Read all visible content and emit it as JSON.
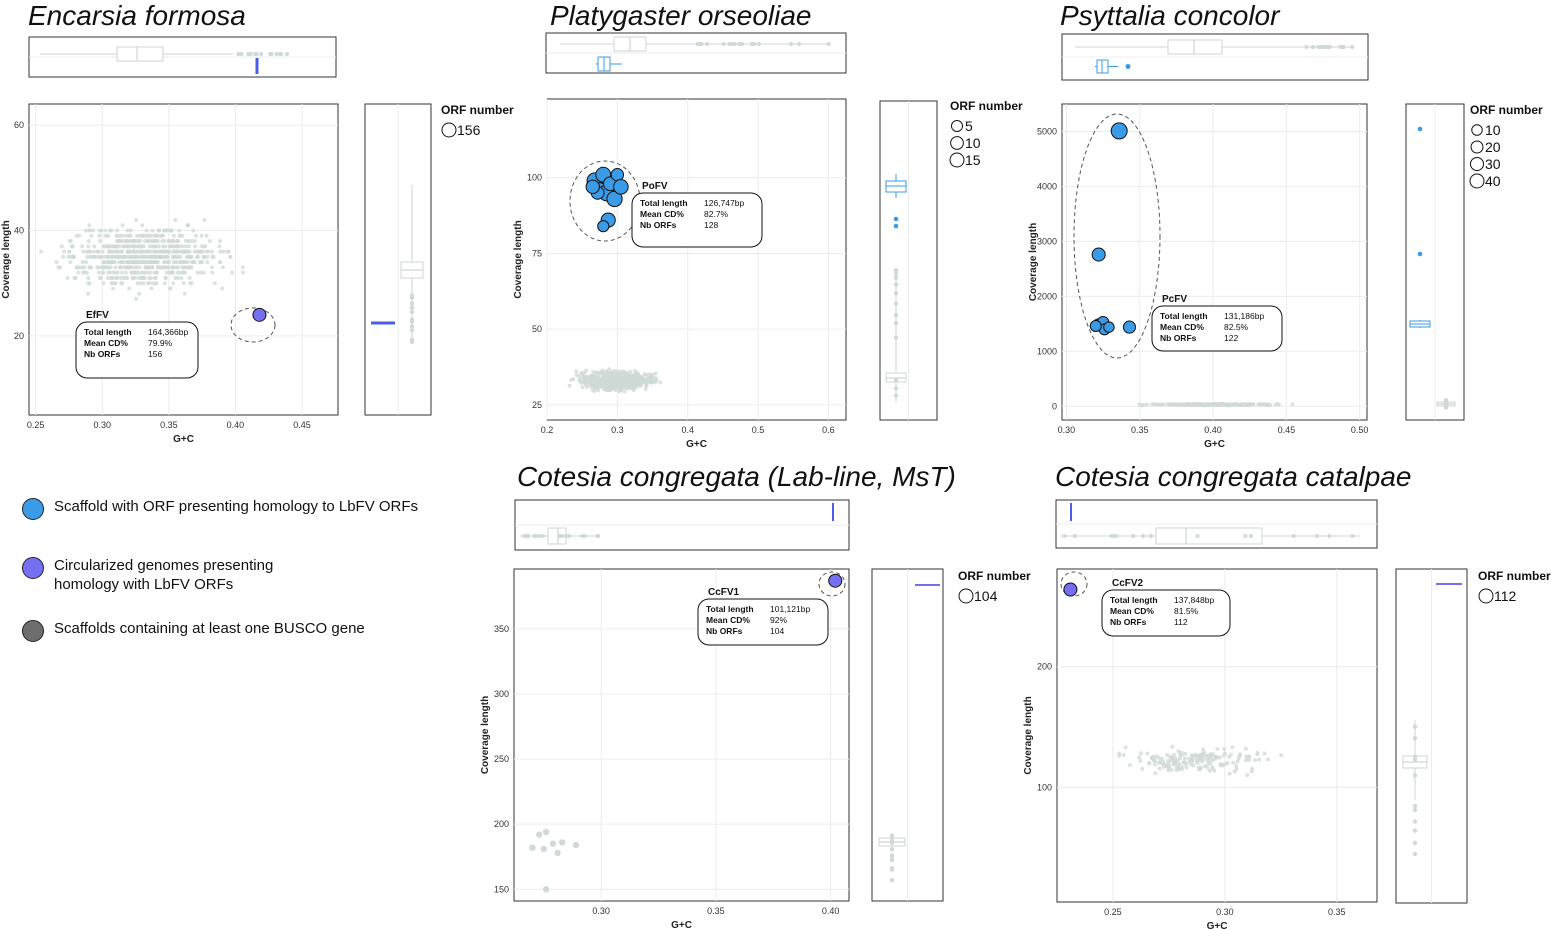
{
  "colors": {
    "scaffold_homology": "#3c9be6",
    "circular_genome": "#7570f2",
    "busco": "#6e6e6e",
    "background_points": "#cfd9d6",
    "grid": "#ececec",
    "line_marker": "#4a5de6"
  },
  "legend": {
    "items": [
      {
        "label": "Scaffold with ORF presenting homology to LbFV ORFs",
        "color": "#3c9be6"
      },
      {
        "label": "Circularized genomes presenting",
        "label2": "homology with LbFV ORFs",
        "color": "#7570f2"
      },
      {
        "label": "Scaffolds containing at least one BUSCO gene",
        "color": "#6e6e6e"
      }
    ]
  },
  "panels": [
    {
      "title": "Encarsia formosa"
    },
    {
      "title": "Platygaster orseoliae"
    },
    {
      "title": "Psyttalia concolor"
    },
    {
      "title": "Cotesia congregata (Lab-line, MsT)"
    },
    {
      "title": "Cotesia congregata catalpae"
    }
  ],
  "chart_data": [
    {
      "type": "scatter",
      "title": "Encarsia formosa",
      "xlabel": "G+C",
      "ylabel": "Coverage length",
      "xlim": [
        0.245,
        0.477
      ],
      "ylim": [
        5,
        64
      ],
      "xticks": [
        0.25,
        0.3,
        0.35,
        0.4,
        0.45
      ],
      "xtick_labels": [
        "0.25",
        "0.30",
        "0.35",
        "0.40",
        "0.45"
      ],
      "yticks": [
        20,
        40,
        60
      ],
      "ytick_labels": [
        "20",
        "40",
        "60"
      ],
      "grid": true,
      "background_cloud": {
        "x_range": [
          0.25,
          0.47
        ],
        "y_range": [
          21,
          48
        ],
        "x_center": 0.33,
        "y_center": 35
      },
      "highlight_points": [
        {
          "x": 0.418,
          "y": 24,
          "orf": 156,
          "kind": "circular"
        }
      ],
      "virus": {
        "name": "EfFV",
        "total_length": "164,366bp",
        "mean_cd": "79.9%",
        "nb_orfs": "156"
      },
      "orf_legend": {
        "title": "ORF number",
        "values": [
          156
        ]
      }
    },
    {
      "type": "scatter",
      "title": "Platygaster orseoliae",
      "xlabel": "G+C",
      "ylabel": "Coverage length",
      "xlim": [
        0.2,
        0.625
      ],
      "ylim": [
        20,
        126
      ],
      "xticks": [
        0.2,
        0.3,
        0.4,
        0.5,
        0.6
      ],
      "xtick_labels": [
        "0.2",
        "0.3",
        "0.4",
        "0.5",
        "0.6"
      ],
      "yticks": [
        25,
        50,
        75,
        100
      ],
      "ytick_labels": [
        "25",
        "50",
        "75",
        "100"
      ],
      "grid": true,
      "background_cloud": {
        "x_range": [
          0.23,
          0.42
        ],
        "y_range": [
          26,
          40
        ],
        "x_center": 0.3,
        "y_center": 33
      },
      "highlight_points": [
        {
          "x": 0.268,
          "y": 99,
          "orf": 14,
          "kind": "scaffold"
        },
        {
          "x": 0.275,
          "y": 96,
          "orf": 10,
          "kind": "scaffold"
        },
        {
          "x": 0.28,
          "y": 101,
          "orf": 12,
          "kind": "scaffold"
        },
        {
          "x": 0.285,
          "y": 95,
          "orf": 15,
          "kind": "scaffold"
        },
        {
          "x": 0.29,
          "y": 98,
          "orf": 9,
          "kind": "scaffold"
        },
        {
          "x": 0.296,
          "y": 93,
          "orf": 13,
          "kind": "scaffold"
        },
        {
          "x": 0.3,
          "y": 101,
          "orf": 6,
          "kind": "scaffold"
        },
        {
          "x": 0.305,
          "y": 97,
          "orf": 11,
          "kind": "scaffold"
        },
        {
          "x": 0.272,
          "y": 95,
          "orf": 7,
          "kind": "scaffold"
        },
        {
          "x": 0.287,
          "y": 86,
          "orf": 10,
          "kind": "scaffold"
        },
        {
          "x": 0.28,
          "y": 84,
          "orf": 4,
          "kind": "scaffold"
        },
        {
          "x": 0.265,
          "y": 97,
          "orf": 8,
          "kind": "scaffold"
        }
      ],
      "virus": {
        "name": "PoFV",
        "total_length": "126,747bp",
        "mean_cd": "82.7%",
        "nb_orfs": "128"
      },
      "orf_legend": {
        "title": "ORF number",
        "values": [
          5,
          10,
          15
        ]
      }
    },
    {
      "type": "scatter",
      "title": "Psyttalia concolor",
      "xlabel": "G+C",
      "ylabel": "Coverage length",
      "xlim": [
        0.297,
        0.505
      ],
      "ylim": [
        -250,
        5500
      ],
      "xticks": [
        0.3,
        0.35,
        0.4,
        0.45,
        0.5
      ],
      "xtick_labels": [
        "0.30",
        "0.35",
        "0.40",
        "0.45",
        "0.50"
      ],
      "yticks": [
        0,
        1000,
        2000,
        3000,
        4000,
        5000
      ],
      "ytick_labels": [
        "0",
        "1000",
        "2000",
        "3000",
        "4000",
        "5000"
      ],
      "grid": true,
      "background_cloud": {
        "x_range": [
          0.305,
          0.47
        ],
        "y_range": [
          0,
          60
        ],
        "x_center": 0.4,
        "y_center": 30
      },
      "highlight_points": [
        {
          "x": 0.336,
          "y": 5010,
          "orf": 40,
          "kind": "scaffold"
        },
        {
          "x": 0.322,
          "y": 2760,
          "orf": 20,
          "kind": "scaffold"
        },
        {
          "x": 0.322,
          "y": 1480,
          "orf": 15,
          "kind": "scaffold"
        },
        {
          "x": 0.325,
          "y": 1530,
          "orf": 12,
          "kind": "scaffold"
        },
        {
          "x": 0.326,
          "y": 1400,
          "orf": 10,
          "kind": "scaffold"
        },
        {
          "x": 0.329,
          "y": 1440,
          "orf": 8,
          "kind": "scaffold"
        },
        {
          "x": 0.32,
          "y": 1460,
          "orf": 10,
          "kind": "scaffold"
        },
        {
          "x": 0.343,
          "y": 1440,
          "orf": 15,
          "kind": "scaffold"
        }
      ],
      "virus": {
        "name": "PcFV",
        "total_length": "131,186bp",
        "mean_cd": "82.5%",
        "nb_orfs": "122"
      },
      "orf_legend": {
        "title": "ORF number",
        "values": [
          10,
          20,
          30,
          40
        ]
      }
    },
    {
      "type": "scatter",
      "title": "Cotesia congregata (Lab-line, MsT)",
      "xlabel": "G+C",
      "ylabel": "Coverage length",
      "xlim": [
        0.262,
        0.408
      ],
      "ylim": [
        141,
        396
      ],
      "xticks": [
        0.3,
        0.35,
        0.4
      ],
      "xtick_labels": [
        "0.30",
        "0.35",
        "0.40"
      ],
      "yticks": [
        150,
        200,
        250,
        300,
        350
      ],
      "ytick_labels": [
        "150",
        "200",
        "250",
        "300",
        "350"
      ],
      "grid": true,
      "background_points": [
        {
          "x": 0.27,
          "y": 182
        },
        {
          "x": 0.273,
          "y": 192
        },
        {
          "x": 0.276,
          "y": 194
        },
        {
          "x": 0.275,
          "y": 181
        },
        {
          "x": 0.279,
          "y": 185
        },
        {
          "x": 0.281,
          "y": 178
        },
        {
          "x": 0.283,
          "y": 186
        },
        {
          "x": 0.289,
          "y": 184
        },
        {
          "x": 0.276,
          "y": 150
        }
      ],
      "highlight_points": [
        {
          "x": 0.402,
          "y": 387,
          "orf": 104,
          "kind": "circular"
        }
      ],
      "virus": {
        "name": "CcFV1",
        "total_length": "101,121bp",
        "mean_cd": "92%",
        "nb_orfs": "104"
      },
      "orf_legend": {
        "title": "ORF number",
        "values": [
          104
        ]
      }
    },
    {
      "type": "scatter",
      "title": "Cotesia congregata catalpae",
      "xlabel": "G+C",
      "ylabel": "Coverage length",
      "xlim": [
        0.225,
        0.368
      ],
      "ylim": [
        5,
        281
      ],
      "xticks": [
        0.25,
        0.3,
        0.35
      ],
      "xtick_labels": [
        "0.25",
        "0.30",
        "0.35"
      ],
      "yticks": [
        100,
        200
      ],
      "ytick_labels": [
        "100",
        "200"
      ],
      "grid": true,
      "background_cloud": {
        "x_range": [
          0.24,
          0.36
        ],
        "y_range": [
          100,
          145
        ],
        "x_center": 0.285,
        "y_center": 122
      },
      "highlight_points": [
        {
          "x": 0.231,
          "y": 264,
          "orf": 112,
          "kind": "circular"
        }
      ],
      "virus": {
        "name": "CcFV2",
        "total_length": "137,848bp",
        "mean_cd": "81.5%",
        "nb_orfs": "112"
      },
      "orf_legend": {
        "title": "ORF number",
        "values": [
          112
        ]
      }
    }
  ]
}
